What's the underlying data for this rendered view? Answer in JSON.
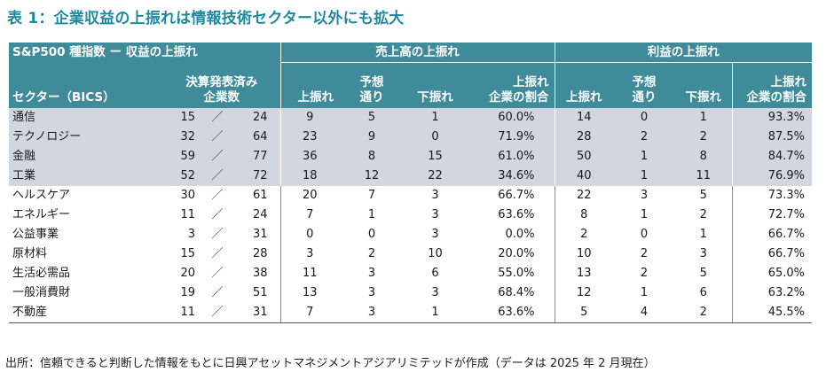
{
  "title": "表 1：企業収益の上振れは情報技術セクター以外にも拡大",
  "header": {
    "index_label": "S&P500 種指数 ー 収益の上振れ",
    "sector_label": "セクター（BICS）",
    "reported_label_1": "決算発表済み",
    "reported_label_2": "企業数",
    "revenue_group": "売上高の上振れ",
    "earnings_group": "利益の上振れ",
    "beat": "上振れ",
    "inline_1": "予想",
    "inline_2": "通り",
    "miss": "下振れ",
    "ratio_1": "上振れ",
    "ratio_2": "企業の割合"
  },
  "separator": "／",
  "rows": [
    {
      "sector": "通信",
      "reported": "15",
      "total": "24",
      "rev_beat": "9",
      "rev_inline": "5",
      "rev_miss": "1",
      "rev_ratio": "60.0%",
      "eps_beat": "14",
      "eps_inline": "0",
      "eps_miss": "1",
      "eps_ratio": "93.3%"
    },
    {
      "sector": "テクノロジー",
      "reported": "32",
      "total": "64",
      "rev_beat": "23",
      "rev_inline": "9",
      "rev_miss": "0",
      "rev_ratio": "71.9%",
      "eps_beat": "28",
      "eps_inline": "2",
      "eps_miss": "2",
      "eps_ratio": "87.5%"
    },
    {
      "sector": "金融",
      "reported": "59",
      "total": "77",
      "rev_beat": "36",
      "rev_inline": "8",
      "rev_miss": "15",
      "rev_ratio": "61.0%",
      "eps_beat": "50",
      "eps_inline": "1",
      "eps_miss": "8",
      "eps_ratio": "84.7%"
    },
    {
      "sector": "工業",
      "reported": "52",
      "total": "72",
      "rev_beat": "18",
      "rev_inline": "12",
      "rev_miss": "22",
      "rev_ratio": "34.6%",
      "eps_beat": "40",
      "eps_inline": "1",
      "eps_miss": "11",
      "eps_ratio": "76.9%"
    },
    {
      "sector": "ヘルスケア",
      "reported": "30",
      "total": "61",
      "rev_beat": "20",
      "rev_inline": "7",
      "rev_miss": "3",
      "rev_ratio": "66.7%",
      "eps_beat": "22",
      "eps_inline": "3",
      "eps_miss": "5",
      "eps_ratio": "73.3%"
    },
    {
      "sector": "エネルギー",
      "reported": "11",
      "total": "24",
      "rev_beat": "7",
      "rev_inline": "1",
      "rev_miss": "3",
      "rev_ratio": "63.6%",
      "eps_beat": "8",
      "eps_inline": "1",
      "eps_miss": "2",
      "eps_ratio": "72.7%"
    },
    {
      "sector": "公益事業",
      "reported": "3",
      "total": "31",
      "rev_beat": "0",
      "rev_inline": "0",
      "rev_miss": "3",
      "rev_ratio": "0.0%",
      "eps_beat": "2",
      "eps_inline": "0",
      "eps_miss": "1",
      "eps_ratio": "66.7%"
    },
    {
      "sector": "原材料",
      "reported": "15",
      "total": "28",
      "rev_beat": "3",
      "rev_inline": "2",
      "rev_miss": "10",
      "rev_ratio": "20.0%",
      "eps_beat": "10",
      "eps_inline": "2",
      "eps_miss": "3",
      "eps_ratio": "66.7%"
    },
    {
      "sector": "生活必需品",
      "reported": "20",
      "total": "38",
      "rev_beat": "11",
      "rev_inline": "3",
      "rev_miss": "6",
      "rev_ratio": "55.0%",
      "eps_beat": "13",
      "eps_inline": "2",
      "eps_miss": "5",
      "eps_ratio": "65.0%"
    },
    {
      "sector": "一般消費財",
      "reported": "19",
      "total": "51",
      "rev_beat": "13",
      "rev_inline": "3",
      "rev_miss": "3",
      "rev_ratio": "68.4%",
      "eps_beat": "12",
      "eps_inline": "1",
      "eps_miss": "6",
      "eps_ratio": "63.2%"
    },
    {
      "sector": "不動産",
      "reported": "11",
      "total": "31",
      "rev_beat": "7",
      "rev_inline": "3",
      "rev_miss": "1",
      "rev_ratio": "63.6%",
      "eps_beat": "5",
      "eps_inline": "4",
      "eps_miss": "2",
      "eps_ratio": "45.5%"
    }
  ],
  "highlighted_rows": 4,
  "colors": {
    "title": "#1e8aa0",
    "header_bg": "#3f8b99",
    "highlight_bg": "#d2d6de"
  },
  "source": "出所：信頼できると判断した情報をもとに日興アセットマネジメントアジアリミテッドが作成（データは 2025 年 2 月現在）"
}
